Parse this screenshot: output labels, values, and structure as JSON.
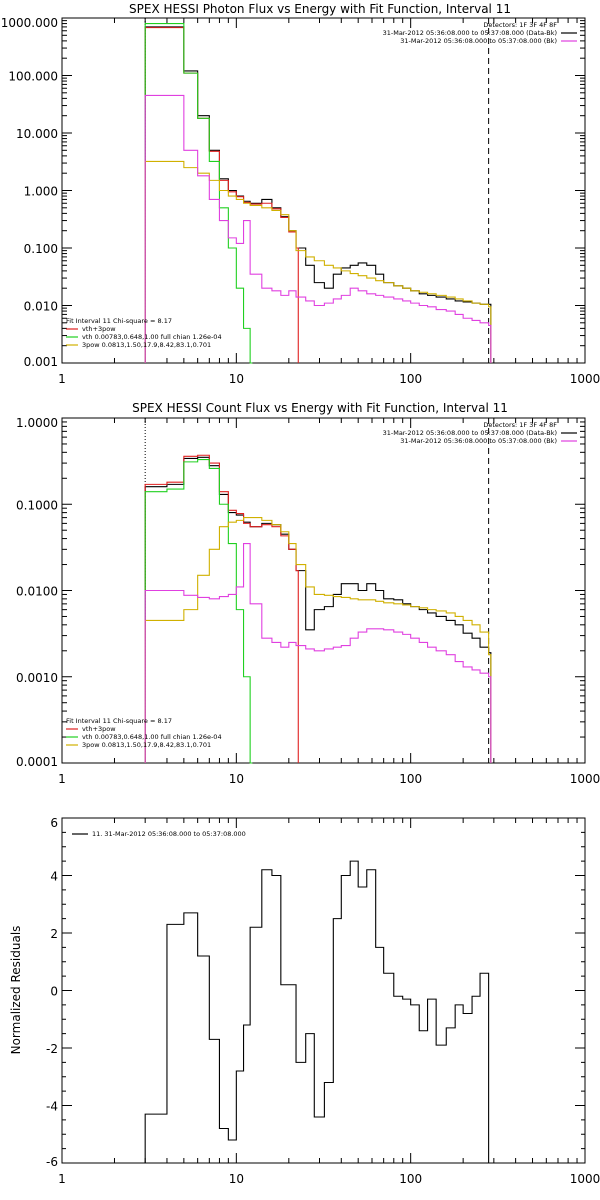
{
  "chart_data": [
    {
      "type": "line",
      "title": "SPEX HESSI Photon Flux vs Energy with Fit Function, Interval 11",
      "xscale": "log",
      "yscale": "log",
      "xlim": [
        1,
        1000
      ],
      "ylim": [
        0.001,
        1000
      ],
      "xticks": [
        "1",
        "10",
        "100",
        "1000"
      ],
      "yticks": [
        "0.001",
        "0.010",
        "0.100",
        "1.000",
        "10.000",
        "100.000",
        "1000.000"
      ],
      "legend_top": [
        "Detectors: 1F 3F 4F 8F",
        "31-Mar-2012 05:36:08.000 to 05:37:08.000 (Data-Bk)",
        "31-Mar-2012 05:36:08.000 to 05:37:08.000 (Bk)"
      ],
      "legend_top_colors": [
        "",
        "#000000",
        "#e040e0"
      ],
      "legend_bottom": [
        "Fit Interval 11    Chi-square = 8.17",
        "vth+3pow",
        "vth 0.00783,0.648,1.00  full chian 1.26e-04",
        "3pow 0.0813,1.50,17.9,8.42,83.1,0.701"
      ],
      "legend_bottom_colors": [
        "",
        "#e02020",
        "#20d020",
        "#d0b000"
      ],
      "vlines": [
        {
          "x": 3,
          "style": "dotted"
        },
        {
          "x": 280,
          "style": "dashed"
        }
      ],
      "series": [
        {
          "color": "#000000",
          "x": [
            3,
            4,
            5,
            6,
            7,
            8,
            9,
            10,
            11,
            12,
            14,
            16,
            18,
            20,
            22,
            25,
            28,
            32,
            36,
            40,
            45,
            50,
            56,
            63,
            70,
            80,
            90,
            100,
            112,
            125,
            140,
            160,
            180,
            200,
            225,
            250,
            280
          ],
          "y": [
            700,
            700,
            120,
            20,
            5,
            1.6,
            1.0,
            0.8,
            0.65,
            0.6,
            0.7,
            0.5,
            0.35,
            0.2,
            0.1,
            0.05,
            0.025,
            0.02,
            0.035,
            0.045,
            0.05,
            0.055,
            0.05,
            0.035,
            0.025,
            0.022,
            0.02,
            0.018,
            0.016,
            0.015,
            0.014,
            0.013,
            0.012,
            0.0115,
            0.011,
            0.0105,
            0.0105
          ]
        },
        {
          "color": "#e02020",
          "x": [
            3,
            4,
            5,
            6,
            7,
            8,
            9,
            10,
            11,
            12,
            14,
            16,
            18,
            20,
            22
          ],
          "y": [
            680,
            680,
            110,
            18,
            4.8,
            1.5,
            0.95,
            0.78,
            0.62,
            0.58,
            0.6,
            0.48,
            0.34,
            0.19,
            0.1
          ]
        },
        {
          "color": "#20d020",
          "x": [
            3,
            4,
            5,
            6,
            7,
            8,
            9,
            10,
            11,
            12
          ],
          "y": [
            800,
            800,
            110,
            18,
            3.2,
            0.5,
            0.1,
            0.02,
            0.004,
            0.001
          ]
        },
        {
          "color": "#d0b000",
          "x": [
            3,
            4,
            5,
            6,
            7,
            8,
            9,
            10,
            11,
            12,
            14,
            16,
            18,
            20,
            22,
            25,
            28,
            32,
            36,
            40,
            45,
            50,
            56,
            63,
            70,
            80,
            90,
            100,
            112,
            125,
            140,
            160,
            180,
            200,
            225,
            250,
            280
          ],
          "y": [
            3.2,
            3.2,
            2.5,
            2.0,
            1.5,
            1.0,
            0.8,
            0.7,
            0.6,
            0.55,
            0.5,
            0.45,
            0.38,
            0.2,
            0.09,
            0.07,
            0.06,
            0.05,
            0.045,
            0.04,
            0.036,
            0.033,
            0.03,
            0.027,
            0.025,
            0.022,
            0.02,
            0.018,
            0.017,
            0.016,
            0.015,
            0.014,
            0.013,
            0.012,
            0.011,
            0.0105,
            0.0095
          ]
        },
        {
          "color": "#e040e0",
          "x": [
            3,
            4,
            5,
            6,
            7,
            8,
            9,
            10,
            11,
            12,
            14,
            16,
            18,
            20,
            22,
            25,
            28,
            32,
            36,
            40,
            45,
            50,
            56,
            63,
            70,
            80,
            90,
            100,
            112,
            125,
            140,
            160,
            180,
            200,
            225,
            250,
            280
          ],
          "y": [
            45,
            45,
            5,
            1.8,
            0.7,
            0.3,
            0.15,
            0.12,
            0.3,
            0.035,
            0.02,
            0.018,
            0.015,
            0.018,
            0.014,
            0.012,
            0.01,
            0.011,
            0.013,
            0.015,
            0.02,
            0.018,
            0.016,
            0.015,
            0.014,
            0.013,
            0.012,
            0.011,
            0.01,
            0.0095,
            0.0085,
            0.008,
            0.007,
            0.006,
            0.0055,
            0.005,
            0.0045
          ]
        }
      ]
    },
    {
      "type": "line",
      "title": "SPEX HESSI Count Flux vs Energy with Fit Function, Interval 11",
      "xscale": "log",
      "yscale": "log",
      "xlim": [
        1,
        1000
      ],
      "ylim": [
        0.0001,
        1
      ],
      "xticks": [
        "1",
        "10",
        "100",
        "1000"
      ],
      "yticks": [
        "0.0001",
        "0.0010",
        "0.0100",
        "0.1000",
        "1.0000"
      ],
      "legend_top": [
        "Detectors: 1F 3F 4F 8F",
        "31-Mar-2012 05:36:08.000 to 05:37:08.000 (Data-Bk)",
        "31-Mar-2012 05:36:08.000 to 05:37:08.000 (Bk)"
      ],
      "legend_top_colors": [
        "",
        "#000000",
        "#e040e0"
      ],
      "legend_bottom": [
        "Fit Interval 11    Chi-square = 8.17",
        "vth+3pow",
        "vth 0.00783,0.648,1.00  full chian 1.26e-04",
        "3pow 0.0813,1.50,17.9,8.42,83.1,0.701"
      ],
      "legend_bottom_colors": [
        "",
        "#e02020",
        "#20d020",
        "#d0b000"
      ],
      "vlines": [
        {
          "x": 3,
          "style": "dotted"
        },
        {
          "x": 280,
          "style": "dashed"
        }
      ],
      "series": [
        {
          "color": "#000000",
          "x": [
            3,
            4,
            5,
            6,
            7,
            8,
            9,
            10,
            11,
            12,
            14,
            16,
            18,
            20,
            22,
            25,
            28,
            32,
            36,
            40,
            45,
            50,
            56,
            63,
            70,
            80,
            90,
            100,
            112,
            125,
            140,
            160,
            180,
            200,
            225,
            250,
            280
          ],
          "y": [
            0.16,
            0.17,
            0.34,
            0.35,
            0.28,
            0.13,
            0.08,
            0.075,
            0.062,
            0.055,
            0.06,
            0.058,
            0.045,
            0.03,
            0.017,
            0.0035,
            0.006,
            0.0065,
            0.009,
            0.012,
            0.012,
            0.01,
            0.012,
            0.01,
            0.008,
            0.0078,
            0.007,
            0.0065,
            0.006,
            0.0055,
            0.005,
            0.0045,
            0.004,
            0.0032,
            0.0028,
            0.0022,
            0.0019
          ]
        },
        {
          "color": "#e02020",
          "x": [
            3,
            4,
            5,
            6,
            7,
            8,
            9,
            10,
            11,
            12,
            14,
            16,
            18,
            20,
            22
          ],
          "y": [
            0.17,
            0.18,
            0.36,
            0.37,
            0.3,
            0.14,
            0.085,
            0.078,
            0.06,
            0.055,
            0.058,
            0.055,
            0.043,
            0.03,
            0.017
          ]
        },
        {
          "color": "#20d020",
          "x": [
            3,
            4,
            5,
            6,
            7,
            8,
            9,
            10,
            11,
            12
          ],
          "y": [
            0.14,
            0.15,
            0.31,
            0.33,
            0.26,
            0.1,
            0.035,
            0.006,
            0.001,
            0.0001
          ]
        },
        {
          "color": "#d0b000",
          "x": [
            3,
            4,
            5,
            6,
            7,
            8,
            9,
            10,
            11,
            12,
            14,
            16,
            18,
            20,
            22,
            25,
            28,
            32,
            36,
            40,
            45,
            50,
            56,
            63,
            70,
            80,
            90,
            100,
            112,
            125,
            140,
            160,
            180,
            200,
            225,
            250,
            280
          ],
          "y": [
            0.0045,
            0.0045,
            0.006,
            0.015,
            0.03,
            0.055,
            0.062,
            0.065,
            0.07,
            0.07,
            0.065,
            0.058,
            0.048,
            0.035,
            0.02,
            0.011,
            0.009,
            0.0088,
            0.0085,
            0.0083,
            0.008,
            0.0078,
            0.0078,
            0.0075,
            0.0072,
            0.007,
            0.0068,
            0.0065,
            0.0063,
            0.006,
            0.0058,
            0.0055,
            0.005,
            0.0045,
            0.004,
            0.0033,
            0.0018
          ]
        },
        {
          "color": "#e040e0",
          "x": [
            3,
            4,
            5,
            6,
            7,
            8,
            9,
            10,
            11,
            12,
            14,
            16,
            18,
            20,
            22,
            25,
            28,
            32,
            36,
            40,
            45,
            50,
            56,
            63,
            70,
            80,
            90,
            100,
            112,
            125,
            140,
            160,
            180,
            200,
            225,
            250,
            280
          ],
          "y": [
            0.01,
            0.01,
            0.0088,
            0.0083,
            0.008,
            0.0085,
            0.009,
            0.011,
            0.035,
            0.007,
            0.0028,
            0.0025,
            0.0022,
            0.0025,
            0.0023,
            0.0021,
            0.002,
            0.0021,
            0.0022,
            0.0023,
            0.0028,
            0.0033,
            0.0036,
            0.0036,
            0.0035,
            0.0033,
            0.0031,
            0.0028,
            0.0025,
            0.0022,
            0.002,
            0.0018,
            0.0015,
            0.0013,
            0.0012,
            0.0011,
            0.001
          ]
        }
      ]
    },
    {
      "type": "line",
      "title": "",
      "xscale": "log",
      "yscale": "linear",
      "xlim": [
        1,
        1000
      ],
      "ylim": [
        -6,
        6
      ],
      "ylabel": "Normalized Residuals",
      "xticks": [
        "1",
        "10",
        "100",
        "1000"
      ],
      "yticks": [
        "-6",
        "-4",
        "-2",
        "0",
        "2",
        "4",
        "6"
      ],
      "legend": "11. 31-Mar-2012 05:36:08.000 to 05:37:08.000",
      "series": [
        {
          "color": "#000000",
          "x": [
            3,
            4,
            5,
            6,
            7,
            8,
            9,
            10,
            11,
            12,
            14,
            16,
            18,
            20,
            22,
            25,
            28,
            32,
            36,
            40,
            45,
            50,
            56,
            63,
            70,
            80,
            90,
            100,
            112,
            125,
            140,
            160,
            180,
            200,
            225,
            250,
            280
          ],
          "y": [
            -4.3,
            2.3,
            2.7,
            1.2,
            -1.7,
            -4.8,
            -5.2,
            -2.8,
            -1.2,
            2.2,
            4.2,
            4.0,
            0.2,
            0.2,
            -2.5,
            -1.5,
            -4.4,
            -3.2,
            2.5,
            4.0,
            4.5,
            3.6,
            4.2,
            1.5,
            0.6,
            -0.2,
            -0.3,
            -0.5,
            -1.4,
            -0.3,
            -1.9,
            -1.3,
            -0.5,
            -0.8,
            -0.2,
            0.6,
            -6
          ]
        }
      ]
    }
  ]
}
